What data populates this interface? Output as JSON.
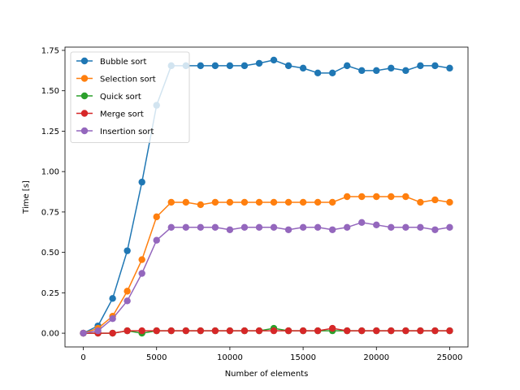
{
  "chart_data": {
    "type": "line",
    "xlabel": "Number of elements",
    "ylabel": "Time [s]",
    "xlim": [
      -1250,
      26250
    ],
    "ylim": [
      -0.085,
      1.77
    ],
    "xticks": [
      0,
      5000,
      10000,
      15000,
      20000,
      25000
    ],
    "xtick_labels": [
      "0",
      "5000",
      "10000",
      "15000",
      "20000",
      "25000"
    ],
    "yticks": [
      0.0,
      0.25,
      0.5,
      0.75,
      1.0,
      1.25,
      1.5,
      1.75
    ],
    "ytick_labels": [
      "0.00",
      "0.25",
      "0.50",
      "0.75",
      "1.00",
      "1.25",
      "1.50",
      "1.75"
    ],
    "grid": false,
    "legend_position": "top-left",
    "x": [
      0,
      1000,
      2000,
      3000,
      4000,
      5000,
      6000,
      7000,
      8000,
      9000,
      10000,
      11000,
      12000,
      13000,
      14000,
      15000,
      16000,
      17000,
      18000,
      19000,
      20000,
      21000,
      22000,
      23000,
      24000,
      25000
    ],
    "series": [
      {
        "name": "Bubble sort",
        "color": "#1f77b4",
        "values": [
          0.0,
          0.045,
          0.215,
          0.51,
          0.935,
          1.41,
          1.655,
          1.655,
          1.655,
          1.655,
          1.655,
          1.655,
          1.67,
          1.69,
          1.655,
          1.64,
          1.61,
          1.61,
          1.655,
          1.625,
          1.625,
          1.64,
          1.625,
          1.655,
          1.655,
          1.64
        ]
      },
      {
        "name": "Selection sort",
        "color": "#ff7f0e",
        "values": [
          0.0,
          0.03,
          0.105,
          0.26,
          0.455,
          0.72,
          0.81,
          0.81,
          0.795,
          0.81,
          0.81,
          0.81,
          0.81,
          0.81,
          0.81,
          0.81,
          0.81,
          0.81,
          0.845,
          0.845,
          0.845,
          0.845,
          0.845,
          0.81,
          0.825,
          0.81
        ]
      },
      {
        "name": "Quick sort",
        "color": "#2ca02c",
        "values": [
          0.0,
          0.0,
          0.0,
          0.015,
          0.0,
          0.015,
          0.015,
          0.015,
          0.015,
          0.015,
          0.015,
          0.015,
          0.015,
          0.03,
          0.015,
          0.015,
          0.015,
          0.015,
          0.015,
          0.015,
          0.015,
          0.015,
          0.015,
          0.015,
          0.015,
          0.015
        ]
      },
      {
        "name": "Merge sort",
        "color": "#d62728",
        "values": [
          0.0,
          0.0,
          0.0,
          0.015,
          0.015,
          0.015,
          0.015,
          0.015,
          0.015,
          0.015,
          0.015,
          0.015,
          0.015,
          0.015,
          0.015,
          0.015,
          0.015,
          0.03,
          0.015,
          0.015,
          0.015,
          0.015,
          0.015,
          0.015,
          0.015,
          0.015
        ]
      },
      {
        "name": "Insertion sort",
        "color": "#9467bd",
        "values": [
          0.0,
          0.015,
          0.09,
          0.2,
          0.37,
          0.575,
          0.655,
          0.655,
          0.655,
          0.655,
          0.64,
          0.655,
          0.655,
          0.655,
          0.64,
          0.655,
          0.655,
          0.64,
          0.655,
          0.685,
          0.67,
          0.655,
          0.655,
          0.655,
          0.64,
          0.655
        ]
      }
    ]
  }
}
